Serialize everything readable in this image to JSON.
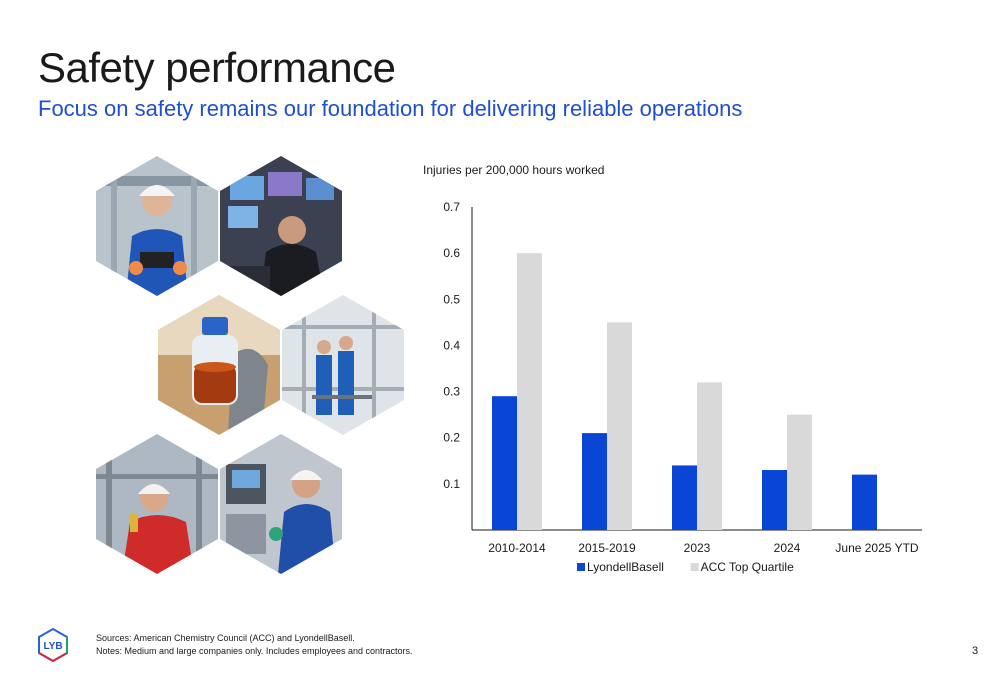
{
  "slide": {
    "title": "Safety performance",
    "subtitle": "Focus on safety remains our foundation for delivering reliable operations",
    "page_number": "3"
  },
  "footer": {
    "logo_text": "LYB",
    "sources": "Sources: American Chemistry Council (ACC) and LyondellBasell.",
    "notes": "Notes: Medium and large companies only. Includes employees and contractors."
  },
  "colors": {
    "title": "#1a1a1a",
    "subtitle": "#1f4fd1",
    "lyondellbasell": "#0a46d6",
    "acc_top_quartile": "#d9d9d9"
  },
  "photos": [
    {
      "icon": "worker-with-tablet-icon"
    },
    {
      "icon": "control-room-operator-icon"
    },
    {
      "icon": "sample-bottle-icon"
    },
    {
      "icon": "workers-on-platform-icon"
    },
    {
      "icon": "worker-with-radio-icon"
    },
    {
      "icon": "technician-at-panel-icon"
    }
  ],
  "chart_data": {
    "type": "bar",
    "title": "",
    "ylabel": "Injuries per 200,000 hours worked",
    "xlabel": "",
    "categories": [
      "2010-2014",
      "2015-2019",
      "2023",
      "2024",
      "June 2025 YTD"
    ],
    "series": [
      {
        "name": "LyondellBasell",
        "values": [
          0.29,
          0.21,
          0.14,
          0.13,
          0.12
        ],
        "color": "#0a46d6"
      },
      {
        "name": "ACC Top Quartile",
        "values": [
          0.6,
          0.45,
          0.32,
          0.25,
          null
        ],
        "color": "#d9d9d9"
      }
    ],
    "ylim": [
      0,
      0.7
    ],
    "yticks": [
      "0.1",
      "0.2",
      "0.3",
      "0.4",
      "0.5",
      "0.6",
      "0.7"
    ],
    "legend_position": "bottom",
    "grid": false
  }
}
